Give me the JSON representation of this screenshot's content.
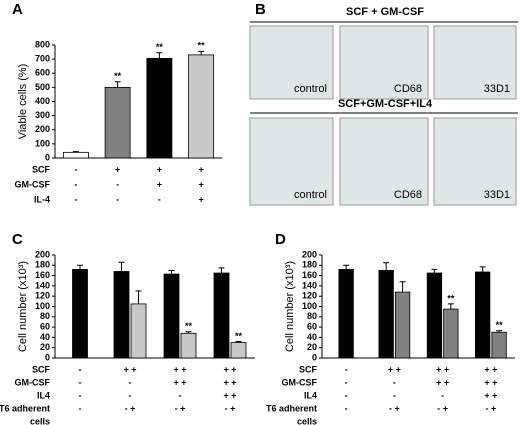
{
  "chart_data": [
    {
      "type": "bar",
      "panel_label": "A",
      "ylabel": "Viable cells (%)",
      "ylim": [
        0,
        800
      ],
      "yticks": [
        0,
        100,
        200,
        300,
        400,
        500,
        600,
        700,
        800
      ],
      "series": [
        {
          "colors": [
            "#ffffff",
            "#808080",
            "#000000",
            "#c8c8c8"
          ],
          "values": [
            40,
            500,
            705,
            730
          ],
          "errors": [
            5,
            40,
            40,
            25
          ],
          "significance": [
            null,
            "**",
            "**",
            "**"
          ]
        }
      ],
      "conditions": [
        {
          "label": "SCF",
          "cells": [
            "-",
            "+",
            "+",
            "+"
          ]
        },
        {
          "label": "GM-CSF",
          "cells": [
            "-",
            "-",
            "+",
            "+"
          ]
        },
        {
          "label": "IL-4",
          "cells": [
            "-",
            "-",
            "-",
            "+"
          ]
        }
      ]
    },
    {
      "type": "bar",
      "panel_label": "C",
      "ylabel": "Cell number (x10³)",
      "ylim": [
        0,
        200
      ],
      "yticks": [
        0,
        20,
        40,
        60,
        80,
        100,
        120,
        140,
        160,
        180,
        200
      ],
      "series": [
        {
          "color": "#000000",
          "values": [
            172,
            168,
            163,
            165
          ],
          "errors": [
            8,
            18,
            7,
            10
          ],
          "significance": [
            null,
            null,
            null,
            null
          ]
        },
        {
          "color": "#c8c8c8",
          "values": [
            null,
            105,
            48,
            30
          ],
          "errors": [
            null,
            25,
            3,
            2
          ],
          "significance": [
            null,
            null,
            "**",
            "**"
          ]
        }
      ],
      "conditions": [
        {
          "label": "SCF",
          "cells": [
            "-",
            "+ +",
            "+ +",
            "+ +"
          ]
        },
        {
          "label": "GM-CSF",
          "cells": [
            "-",
            "-",
            "+ +",
            "+ +"
          ]
        },
        {
          "label": "IL4",
          "cells": [
            "-",
            "-",
            "-",
            "+ +"
          ]
        },
        {
          "label": "T6 adherent",
          "cells": [
            "-",
            "- +",
            "- +",
            "- +"
          ]
        },
        {
          "label": "cells",
          "cells": [
            null,
            null,
            null,
            null
          ]
        }
      ]
    },
    {
      "type": "bar",
      "panel_label": "D",
      "ylabel": "Cell number (x10³)",
      "ylim": [
        0,
        200
      ],
      "yticks": [
        0,
        20,
        40,
        60,
        80,
        100,
        120,
        140,
        160,
        180,
        200
      ],
      "series": [
        {
          "color": "#000000",
          "values": [
            172,
            170,
            165,
            167
          ],
          "errors": [
            8,
            15,
            7,
            10
          ],
          "significance": [
            null,
            null,
            null,
            null
          ]
        },
        {
          "color": "#808080",
          "values": [
            null,
            128,
            95,
            50
          ],
          "errors": [
            null,
            20,
            10,
            3
          ],
          "significance": [
            null,
            null,
            "**",
            "**"
          ]
        }
      ],
      "conditions": [
        {
          "label": "SCF",
          "cells": [
            "-",
            "+ +",
            "+ +",
            "+ +"
          ]
        },
        {
          "label": "GM-CSF",
          "cells": [
            "-",
            "-",
            "+ +",
            "+ +"
          ]
        },
        {
          "label": "IL4",
          "cells": [
            "-",
            "-",
            "-",
            "+ +"
          ]
        },
        {
          "label": "T6 adherent",
          "cells": [
            "-",
            "- +",
            "- +",
            "- +"
          ]
        },
        {
          "label": "cells",
          "cells": [
            null,
            null,
            null,
            null
          ]
        }
      ]
    }
  ],
  "image_panel": {
    "panel_label": "B",
    "rows": [
      {
        "title": "SCF + GM-CSF",
        "images": [
          "control",
          "CD68",
          "33D1"
        ]
      },
      {
        "title": "SCF+GM-CSF+IL4",
        "images": [
          "control",
          "CD68",
          "33D1"
        ]
      }
    ]
  }
}
